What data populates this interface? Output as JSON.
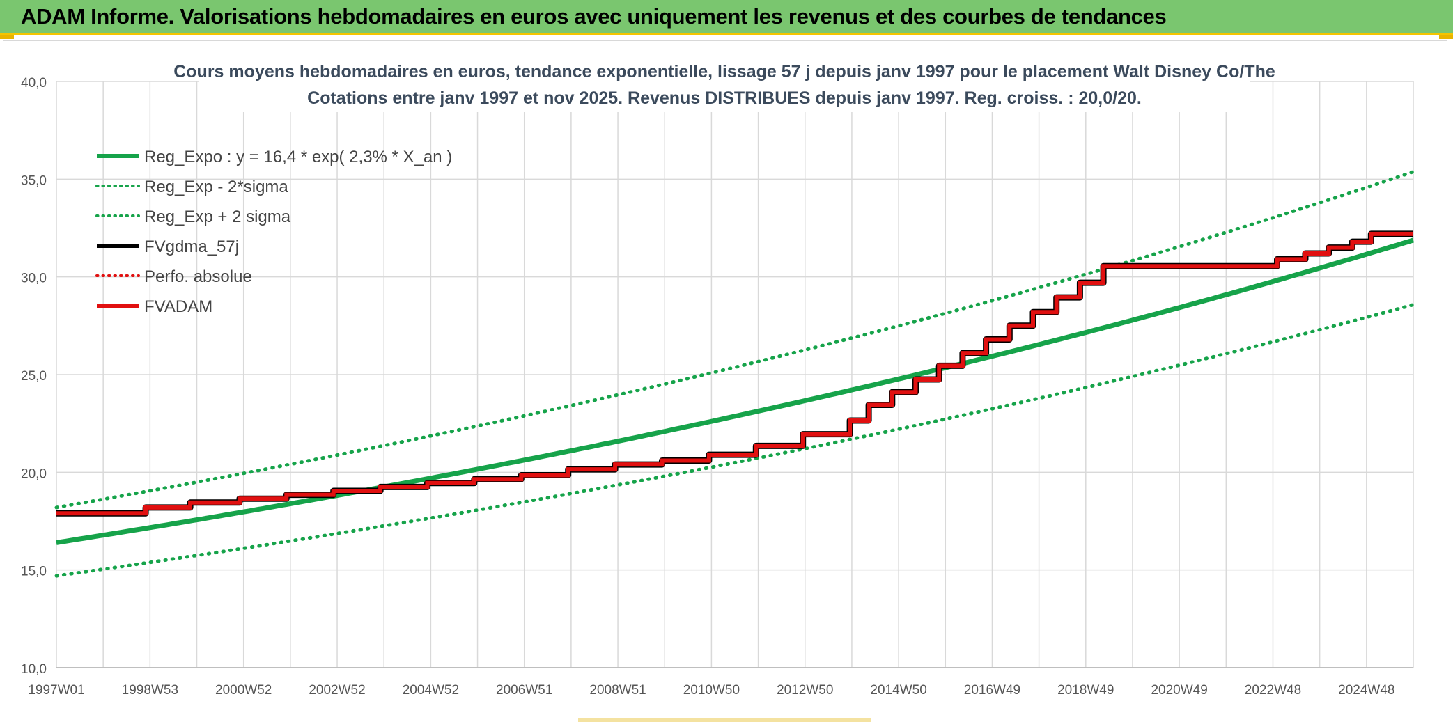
{
  "banner": {
    "title": "ADAM Informe. Valorisations hebdomadaires en euros avec uniquement les revenus et des courbes de tendances"
  },
  "colors": {
    "banner_bg": "#7ac66f",
    "banner_border": "#f4c400",
    "trend_green": "#16a34a",
    "fvadam_red": "#e11010",
    "fvgdma_black": "#000000",
    "grid": "#d9d9d9"
  },
  "chart_data": {
    "type": "line",
    "title": "Cours moyens hebdomadaires en euros, tendance exponentielle, lissage 57 j depuis janv 1997 pour le placement Walt Disney Co/The",
    "subtitle": "Cotations entre janv 1997 et nov 2025. Revenus DISTRIBUES depuis janv 1997. Reg. croiss. : 20,0/20.",
    "ylim": [
      10,
      40
    ],
    "y_ticks": [
      "10,0",
      "15,0",
      "20,0",
      "25,0",
      "30,0",
      "35,0",
      "40,0"
    ],
    "x_tick_labels": [
      "1997W01",
      "1998W53",
      "2000W52",
      "2002W52",
      "2004W52",
      "2006W51",
      "2008W51",
      "2010W50",
      "2012W50",
      "2014W50",
      "2016W49",
      "2018W49",
      "2020W49",
      "2022W48",
      "2024W48"
    ],
    "xlim_years": [
      1997.0,
      2025.9
    ],
    "grid": "on",
    "legend_position": "top-left",
    "legend": [
      {
        "label": "Reg_Expo : y = 16,4 * exp( 2,3% *  X_an )",
        "color": "#16a34a",
        "style": "solid"
      },
      {
        "label": "Reg_Exp - 2*sigma",
        "color": "#16a34a",
        "style": "dotted"
      },
      {
        "label": "Reg_Exp + 2 sigma",
        "color": "#16a34a",
        "style": "dotted"
      },
      {
        "label": "FVgdma_57j",
        "color": "#000000",
        "style": "solid"
      },
      {
        "label": "Perfo. absolue",
        "color": "#e11010",
        "style": "dotted"
      },
      {
        "label": "FVADAM",
        "color": "#e11010",
        "style": "solid"
      }
    ],
    "series": [
      {
        "name": "Reg_Expo : y = 16,4 * exp( 2,3% *  X_an )",
        "a": 16.4,
        "rate": 0.023
      },
      {
        "name": "Reg_Exp - 2*sigma",
        "a": 14.7,
        "rate": 0.023
      },
      {
        "name": "Reg_Exp + 2 sigma",
        "a": 18.2,
        "rate": 0.023
      },
      {
        "name": "FVADAM",
        "x": [
          1997.0,
          1998.9,
          1999.85,
          2000.9,
          2001.9,
          2002.9,
          2003.9,
          2004.9,
          2005.9,
          2006.9,
          2007.9,
          2008.9,
          2009.9,
          2010.9,
          2011.9,
          2012.9,
          2013.9,
          2014.3,
          2014.8,
          2015.3,
          2015.8,
          2016.3,
          2016.8,
          2017.3,
          2017.8,
          2018.3,
          2018.8,
          2019.3,
          2019.8,
          2023.0,
          2023.6,
          2024.1,
          2024.6,
          2025.0,
          2025.9
        ],
        "values": [
          17.9,
          18.2,
          18.45,
          18.65,
          18.85,
          19.05,
          19.25,
          19.45,
          19.65,
          19.85,
          20.15,
          20.4,
          20.6,
          20.9,
          21.35,
          21.95,
          22.65,
          23.45,
          24.1,
          24.75,
          25.45,
          26.1,
          26.8,
          27.5,
          28.2,
          28.95,
          29.7,
          30.55,
          30.55,
          30.9,
          31.2,
          31.5,
          31.8,
          32.2,
          32.2
        ]
      }
    ]
  }
}
